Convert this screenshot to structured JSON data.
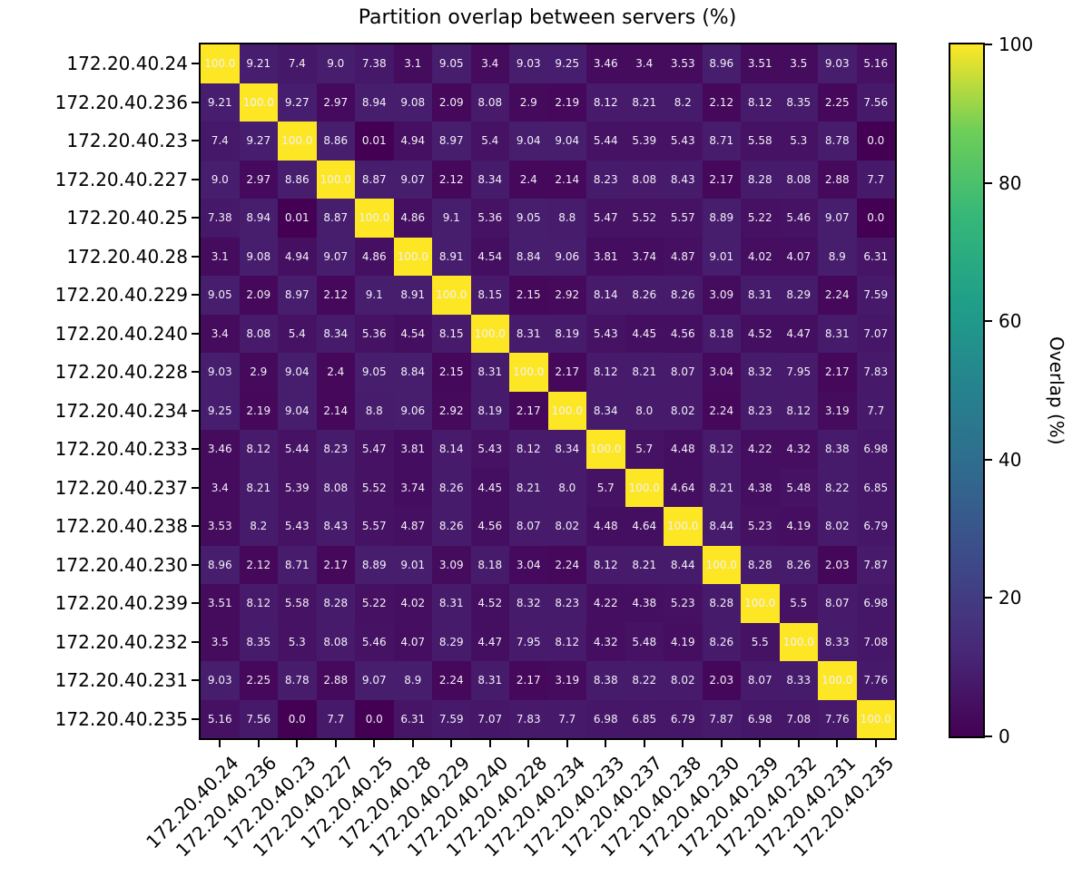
{
  "chart_data": {
    "type": "heatmap",
    "title": "Partition overlap between servers (%)",
    "colormap": "viridis",
    "value_min": 0,
    "value_max": 100,
    "x_labels": [
      "172.20.40.24",
      "172.20.40.236",
      "172.20.40.23",
      "172.20.40.227",
      "172.20.40.25",
      "172.20.40.28",
      "172.20.40.229",
      "172.20.40.240",
      "172.20.40.228",
      "172.20.40.234",
      "172.20.40.233",
      "172.20.40.237",
      "172.20.40.238",
      "172.20.40.230",
      "172.20.40.239",
      "172.20.40.232",
      "172.20.40.231",
      "172.20.40.235"
    ],
    "y_labels": [
      "172.20.40.24",
      "172.20.40.236",
      "172.20.40.23",
      "172.20.40.227",
      "172.20.40.25",
      "172.20.40.28",
      "172.20.40.229",
      "172.20.40.240",
      "172.20.40.228",
      "172.20.40.234",
      "172.20.40.233",
      "172.20.40.237",
      "172.20.40.238",
      "172.20.40.230",
      "172.20.40.239",
      "172.20.40.232",
      "172.20.40.231",
      "172.20.40.235"
    ],
    "matrix": [
      [
        "100.0",
        "9.21",
        "7.4",
        "9.0",
        "7.38",
        "3.1",
        "9.05",
        "3.4",
        "9.03",
        "9.25",
        "3.46",
        "3.4",
        "3.53",
        "8.96",
        "3.51",
        "3.5",
        "9.03",
        "5.16"
      ],
      [
        "9.21",
        "100.0",
        "9.27",
        "2.97",
        "8.94",
        "9.08",
        "2.09",
        "8.08",
        "2.9",
        "2.19",
        "8.12",
        "8.21",
        "8.2",
        "2.12",
        "8.12",
        "8.35",
        "2.25",
        "7.56"
      ],
      [
        "7.4",
        "9.27",
        "100.0",
        "8.86",
        "0.01",
        "4.94",
        "8.97",
        "5.4",
        "9.04",
        "9.04",
        "5.44",
        "5.39",
        "5.43",
        "8.71",
        "5.58",
        "5.3",
        "8.78",
        "0.0"
      ],
      [
        "9.0",
        "2.97",
        "8.86",
        "100.0",
        "8.87",
        "9.07",
        "2.12",
        "8.34",
        "2.4",
        "2.14",
        "8.23",
        "8.08",
        "8.43",
        "2.17",
        "8.28",
        "8.08",
        "2.88",
        "7.7"
      ],
      [
        "7.38",
        "8.94",
        "0.01",
        "8.87",
        "100.0",
        "4.86",
        "9.1",
        "5.36",
        "9.05",
        "8.8",
        "5.47",
        "5.52",
        "5.57",
        "8.89",
        "5.22",
        "5.46",
        "9.07",
        "0.0"
      ],
      [
        "3.1",
        "9.08",
        "4.94",
        "9.07",
        "4.86",
        "100.0",
        "8.91",
        "4.54",
        "8.84",
        "9.06",
        "3.81",
        "3.74",
        "4.87",
        "9.01",
        "4.02",
        "4.07",
        "8.9",
        "6.31"
      ],
      [
        "9.05",
        "2.09",
        "8.97",
        "2.12",
        "9.1",
        "8.91",
        "100.0",
        "8.15",
        "2.15",
        "2.92",
        "8.14",
        "8.26",
        "8.26",
        "3.09",
        "8.31",
        "8.29",
        "2.24",
        "7.59"
      ],
      [
        "3.4",
        "8.08",
        "5.4",
        "8.34",
        "5.36",
        "4.54",
        "8.15",
        "100.0",
        "8.31",
        "8.19",
        "5.43",
        "4.45",
        "4.56",
        "8.18",
        "4.52",
        "4.47",
        "8.31",
        "7.07"
      ],
      [
        "9.03",
        "2.9",
        "9.04",
        "2.4",
        "9.05",
        "8.84",
        "2.15",
        "8.31",
        "100.0",
        "2.17",
        "8.12",
        "8.21",
        "8.07",
        "3.04",
        "8.32",
        "7.95",
        "2.17",
        "7.83"
      ],
      [
        "9.25",
        "2.19",
        "9.04",
        "2.14",
        "8.8",
        "9.06",
        "2.92",
        "8.19",
        "2.17",
        "100.0",
        "8.34",
        "8.0",
        "8.02",
        "2.24",
        "8.23",
        "8.12",
        "3.19",
        "7.7"
      ],
      [
        "3.46",
        "8.12",
        "5.44",
        "8.23",
        "5.47",
        "3.81",
        "8.14",
        "5.43",
        "8.12",
        "8.34",
        "100.0",
        "5.7",
        "4.48",
        "8.12",
        "4.22",
        "4.32",
        "8.38",
        "6.98"
      ],
      [
        "3.4",
        "8.21",
        "5.39",
        "8.08",
        "5.52",
        "3.74",
        "8.26",
        "4.45",
        "8.21",
        "8.0",
        "5.7",
        "100.0",
        "4.64",
        "8.21",
        "4.38",
        "5.48",
        "8.22",
        "6.85"
      ],
      [
        "3.53",
        "8.2",
        "5.43",
        "8.43",
        "5.57",
        "4.87",
        "8.26",
        "4.56",
        "8.07",
        "8.02",
        "4.48",
        "4.64",
        "100.0",
        "8.44",
        "5.23",
        "4.19",
        "8.02",
        "6.79"
      ],
      [
        "8.96",
        "2.12",
        "8.71",
        "2.17",
        "8.89",
        "9.01",
        "3.09",
        "8.18",
        "3.04",
        "2.24",
        "8.12",
        "8.21",
        "8.44",
        "100.0",
        "8.28",
        "8.26",
        "2.03",
        "7.87"
      ],
      [
        "3.51",
        "8.12",
        "5.58",
        "8.28",
        "5.22",
        "4.02",
        "8.31",
        "4.52",
        "8.32",
        "8.23",
        "4.22",
        "4.38",
        "5.23",
        "8.28",
        "100.0",
        "5.5",
        "8.07",
        "6.98"
      ],
      [
        "3.5",
        "8.35",
        "5.3",
        "8.08",
        "5.46",
        "4.07",
        "8.29",
        "4.47",
        "7.95",
        "8.12",
        "4.32",
        "5.48",
        "4.19",
        "8.26",
        "5.5",
        "100.0",
        "8.33",
        "7.08"
      ],
      [
        "9.03",
        "2.25",
        "8.78",
        "2.88",
        "9.07",
        "8.9",
        "2.24",
        "8.31",
        "2.17",
        "3.19",
        "8.38",
        "8.22",
        "8.02",
        "2.03",
        "8.07",
        "8.33",
        "100.0",
        "7.76"
      ],
      [
        "5.16",
        "7.56",
        "0.0",
        "7.7",
        "0.0",
        "6.31",
        "7.59",
        "7.07",
        "7.83",
        "7.7",
        "6.98",
        "6.85",
        "6.79",
        "7.87",
        "6.98",
        "7.08",
        "7.76",
        "100.0"
      ]
    ],
    "colorbar": {
      "label": "Overlap (%)",
      "ticks": [
        100,
        80,
        60,
        40,
        20,
        0
      ]
    },
    "colors": {
      "viridis_low": "#440154",
      "viridis_high": "#fde725",
      "annotation_text": "#f2f1f6",
      "axis_text": "#000000"
    }
  }
}
